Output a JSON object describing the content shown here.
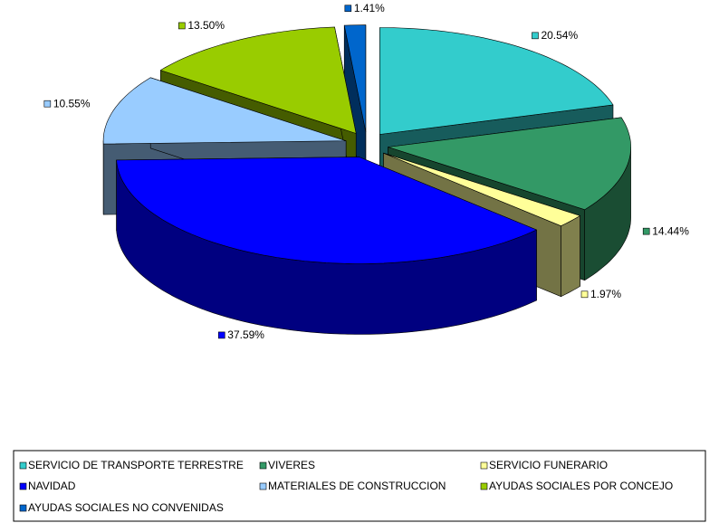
{
  "chart_data": {
    "type": "pie",
    "categories": [
      "SERVICIO DE TRANSPORTE TERRESTRE",
      "VIVERES",
      "SERVICIO FUNERARIO",
      "NAVIDAD",
      "MATERIALES DE CONSTRUCCION",
      "AYUDAS SOCIALES POR CONCEJO",
      "AYUDAS SOCIALES NO CONVENIDAS"
    ],
    "values": [
      20.54,
      14.44,
      1.97,
      37.59,
      10.55,
      13.5,
      1.41
    ],
    "value_labels": [
      "20.54%",
      "14.44%",
      "1.97%",
      "37.59%",
      "10.55%",
      "13.50%",
      "1.41%"
    ],
    "colors": [
      "#33CCCC",
      "#339966",
      "#FFFF99",
      "#0000FF",
      "#99CCFF",
      "#99CC00",
      "#0066CC"
    ],
    "legend": "bottom"
  }
}
